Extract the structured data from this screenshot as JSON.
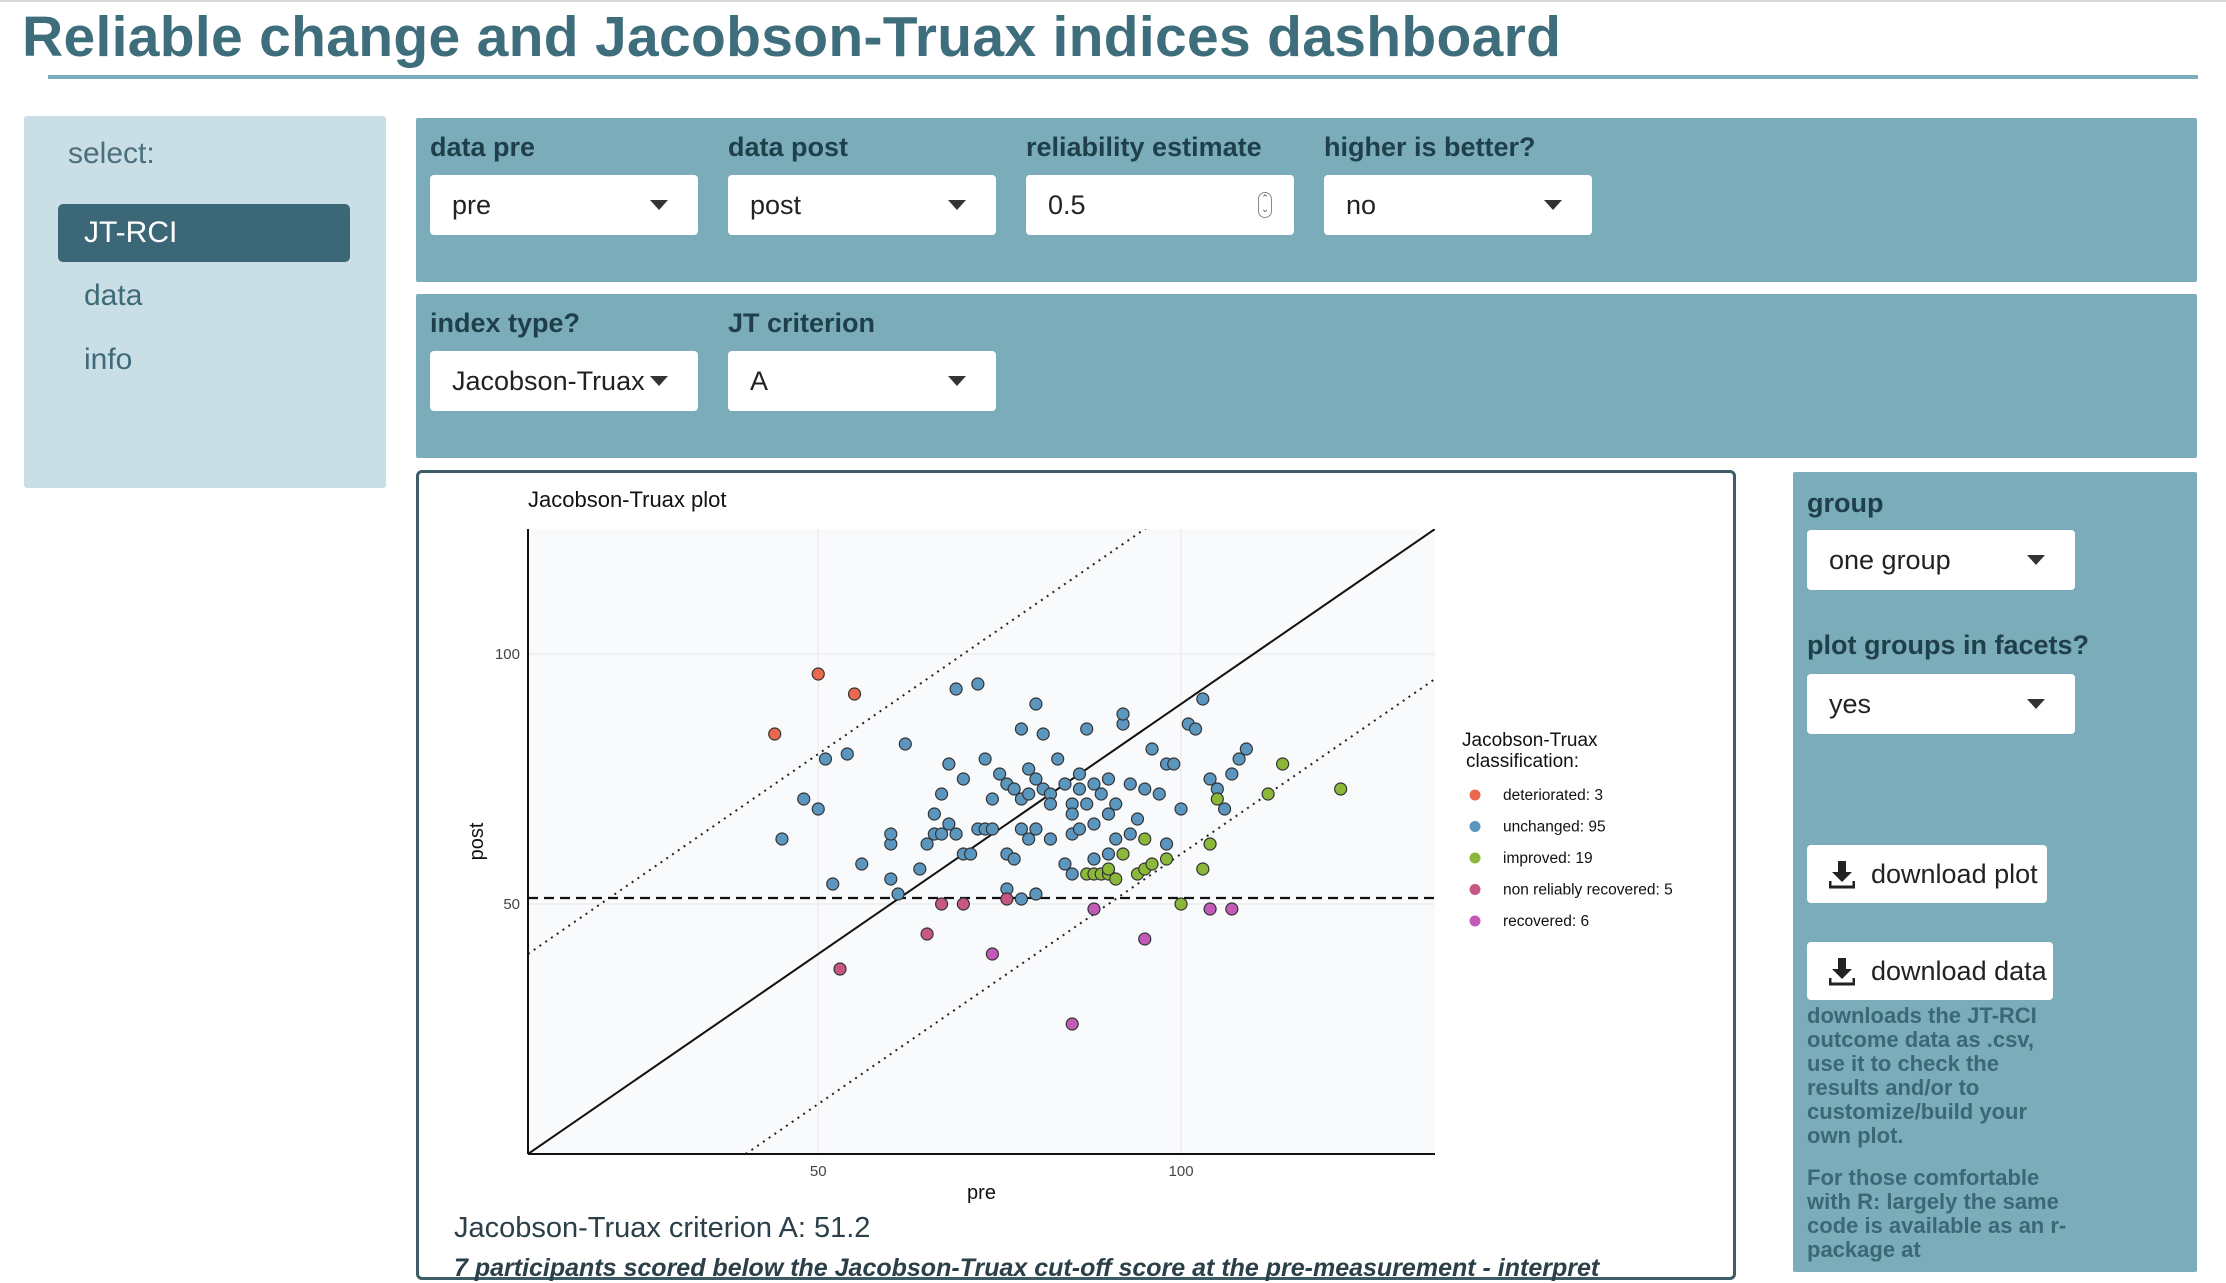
{
  "header": {
    "title": "Reliable change and Jacobson-Truax indices dashboard"
  },
  "sidebar": {
    "label": "select:",
    "items": [
      {
        "label": "JT-RCI",
        "active": true
      },
      {
        "label": "data",
        "active": false
      },
      {
        "label": "info",
        "active": false
      }
    ]
  },
  "controls_row1": {
    "data_pre": {
      "label": "data pre",
      "value": "pre"
    },
    "data_post": {
      "label": "data post",
      "value": "post"
    },
    "reliability": {
      "label": "reliability estimate",
      "value": "0.5"
    },
    "higher_better": {
      "label": "higher is better?",
      "value": "no"
    }
  },
  "controls_row2": {
    "index_type": {
      "label": "index type?",
      "value": "Jacobson-Truax"
    },
    "jt_criterion": {
      "label": "JT criterion",
      "value": "A"
    }
  },
  "right_panel": {
    "group": {
      "label": "group",
      "value": "one group"
    },
    "facets": {
      "label": "plot groups in facets?",
      "value": "yes"
    },
    "download_plot": "download plot",
    "download_data": "download data",
    "download_note": "downloads the JT-RCI outcome data as .csv, use it to check the results and/or to customize/build your own plot.",
    "r_note": "For those comfortable with R: largely the same code is available as an r-package at"
  },
  "results": {
    "criterion_text": "Jacobson-Truax criterion A: 51.2",
    "criterion_note": "7 participants scored below the Jacobson-Truax cut-off score at the pre-measurement - interpret"
  },
  "colors": {
    "deteriorated": "#e8694f",
    "unchanged": "#5b96bf",
    "improved": "#8cb83a",
    "non_reliably_recovered": "#c75783",
    "recovered": "#c45ab8"
  },
  "chart_data": {
    "type": "scatter",
    "title": "Jacobson-Truax plot",
    "xlabel": "pre",
    "ylabel": "post",
    "xlim": [
      10,
      135
    ],
    "ylim": [
      0,
      125
    ],
    "x_ticks": [
      50,
      100
    ],
    "y_ticks": [
      50,
      100
    ],
    "grid": true,
    "cutoff": 51.2,
    "legend_title": "Jacobson-Truax\nclassification:",
    "legend_position": "right",
    "series": [
      {
        "name": "deteriorated: 3",
        "color_key": "deteriorated",
        "points": [
          [
            44,
            84
          ],
          [
            50,
            96
          ],
          [
            55,
            92
          ]
        ]
      },
      {
        "name": "unchanged: 95",
        "color_key": "unchanged",
        "points": [
          [
            45,
            63
          ],
          [
            48,
            71
          ],
          [
            50,
            69
          ],
          [
            51,
            79
          ],
          [
            54,
            80
          ],
          [
            56,
            58
          ],
          [
            60,
            62
          ],
          [
            60,
            64
          ],
          [
            60,
            55
          ],
          [
            61,
            52
          ],
          [
            62,
            82
          ],
          [
            64,
            57
          ],
          [
            65,
            62
          ],
          [
            66,
            64
          ],
          [
            66,
            68
          ],
          [
            67,
            64
          ],
          [
            67,
            72
          ],
          [
            68,
            78
          ],
          [
            68,
            66
          ],
          [
            69,
            93
          ],
          [
            69,
            64
          ],
          [
            70,
            60
          ],
          [
            70,
            75
          ],
          [
            71,
            60
          ],
          [
            72,
            94
          ],
          [
            72,
            65
          ],
          [
            73,
            65
          ],
          [
            73,
            79
          ],
          [
            74,
            65
          ],
          [
            74,
            71
          ],
          [
            75,
            76
          ],
          [
            76,
            74
          ],
          [
            76,
            60
          ],
          [
            76,
            53
          ],
          [
            77,
            73
          ],
          [
            77,
            59
          ],
          [
            78,
            71
          ],
          [
            78,
            65
          ],
          [
            78,
            85
          ],
          [
            78,
            51
          ],
          [
            79,
            72
          ],
          [
            79,
            77
          ],
          [
            79,
            63
          ],
          [
            80,
            75
          ],
          [
            80,
            65
          ],
          [
            80,
            52
          ],
          [
            80,
            90
          ],
          [
            81,
            73
          ],
          [
            81,
            84
          ],
          [
            82,
            63
          ],
          [
            82,
            72
          ],
          [
            82,
            70
          ],
          [
            83,
            79
          ],
          [
            84,
            58
          ],
          [
            84,
            74
          ],
          [
            85,
            64
          ],
          [
            85,
            70
          ],
          [
            85,
            56
          ],
          [
            85,
            68
          ],
          [
            86,
            65
          ],
          [
            86,
            73
          ],
          [
            86,
            76
          ],
          [
            87,
            85
          ],
          [
            87,
            70
          ],
          [
            88,
            59
          ],
          [
            88,
            66
          ],
          [
            88,
            74
          ],
          [
            89,
            72
          ],
          [
            90,
            60
          ],
          [
            90,
            68
          ],
          [
            90,
            75
          ],
          [
            91,
            63
          ],
          [
            91,
            70
          ],
          [
            92,
            86
          ],
          [
            92,
            88
          ],
          [
            93,
            74
          ],
          [
            93,
            64
          ],
          [
            94,
            67
          ],
          [
            95,
            73
          ],
          [
            96,
            81
          ],
          [
            97,
            72
          ],
          [
            98,
            78
          ],
          [
            99,
            78
          ],
          [
            100,
            69
          ],
          [
            101,
            86
          ],
          [
            102,
            85
          ],
          [
            103,
            91
          ],
          [
            104,
            75
          ],
          [
            105,
            73
          ],
          [
            106,
            69
          ],
          [
            107,
            76
          ],
          [
            108,
            79
          ],
          [
            109,
            81
          ],
          [
            52,
            54
          ],
          [
            98,
            62
          ]
        ]
      },
      {
        "name": "improved: 19",
        "color_key": "improved",
        "points": [
          [
            87,
            56
          ],
          [
            88,
            56
          ],
          [
            89,
            56
          ],
          [
            90,
            56
          ],
          [
            90,
            57
          ],
          [
            91,
            55
          ],
          [
            92,
            60
          ],
          [
            94,
            56
          ],
          [
            95,
            63
          ],
          [
            95,
            57
          ],
          [
            96,
            58
          ],
          [
            98,
            59
          ],
          [
            103,
            57
          ],
          [
            104,
            62
          ],
          [
            105,
            71
          ],
          [
            112,
            72
          ],
          [
            114,
            78
          ],
          [
            122,
            73
          ],
          [
            100,
            50
          ]
        ]
      },
      {
        "name": "non reliably recovered: 5",
        "color_key": "non_reliably_recovered",
        "points": [
          [
            53,
            37
          ],
          [
            65,
            44
          ],
          [
            67,
            50
          ],
          [
            70,
            50
          ],
          [
            76,
            51
          ]
        ]
      },
      {
        "name": "recovered: 6",
        "color_key": "recovered",
        "points": [
          [
            74,
            40
          ],
          [
            85,
            26
          ],
          [
            88,
            49
          ],
          [
            95,
            43
          ],
          [
            104,
            49
          ],
          [
            107,
            49
          ]
        ]
      }
    ]
  }
}
